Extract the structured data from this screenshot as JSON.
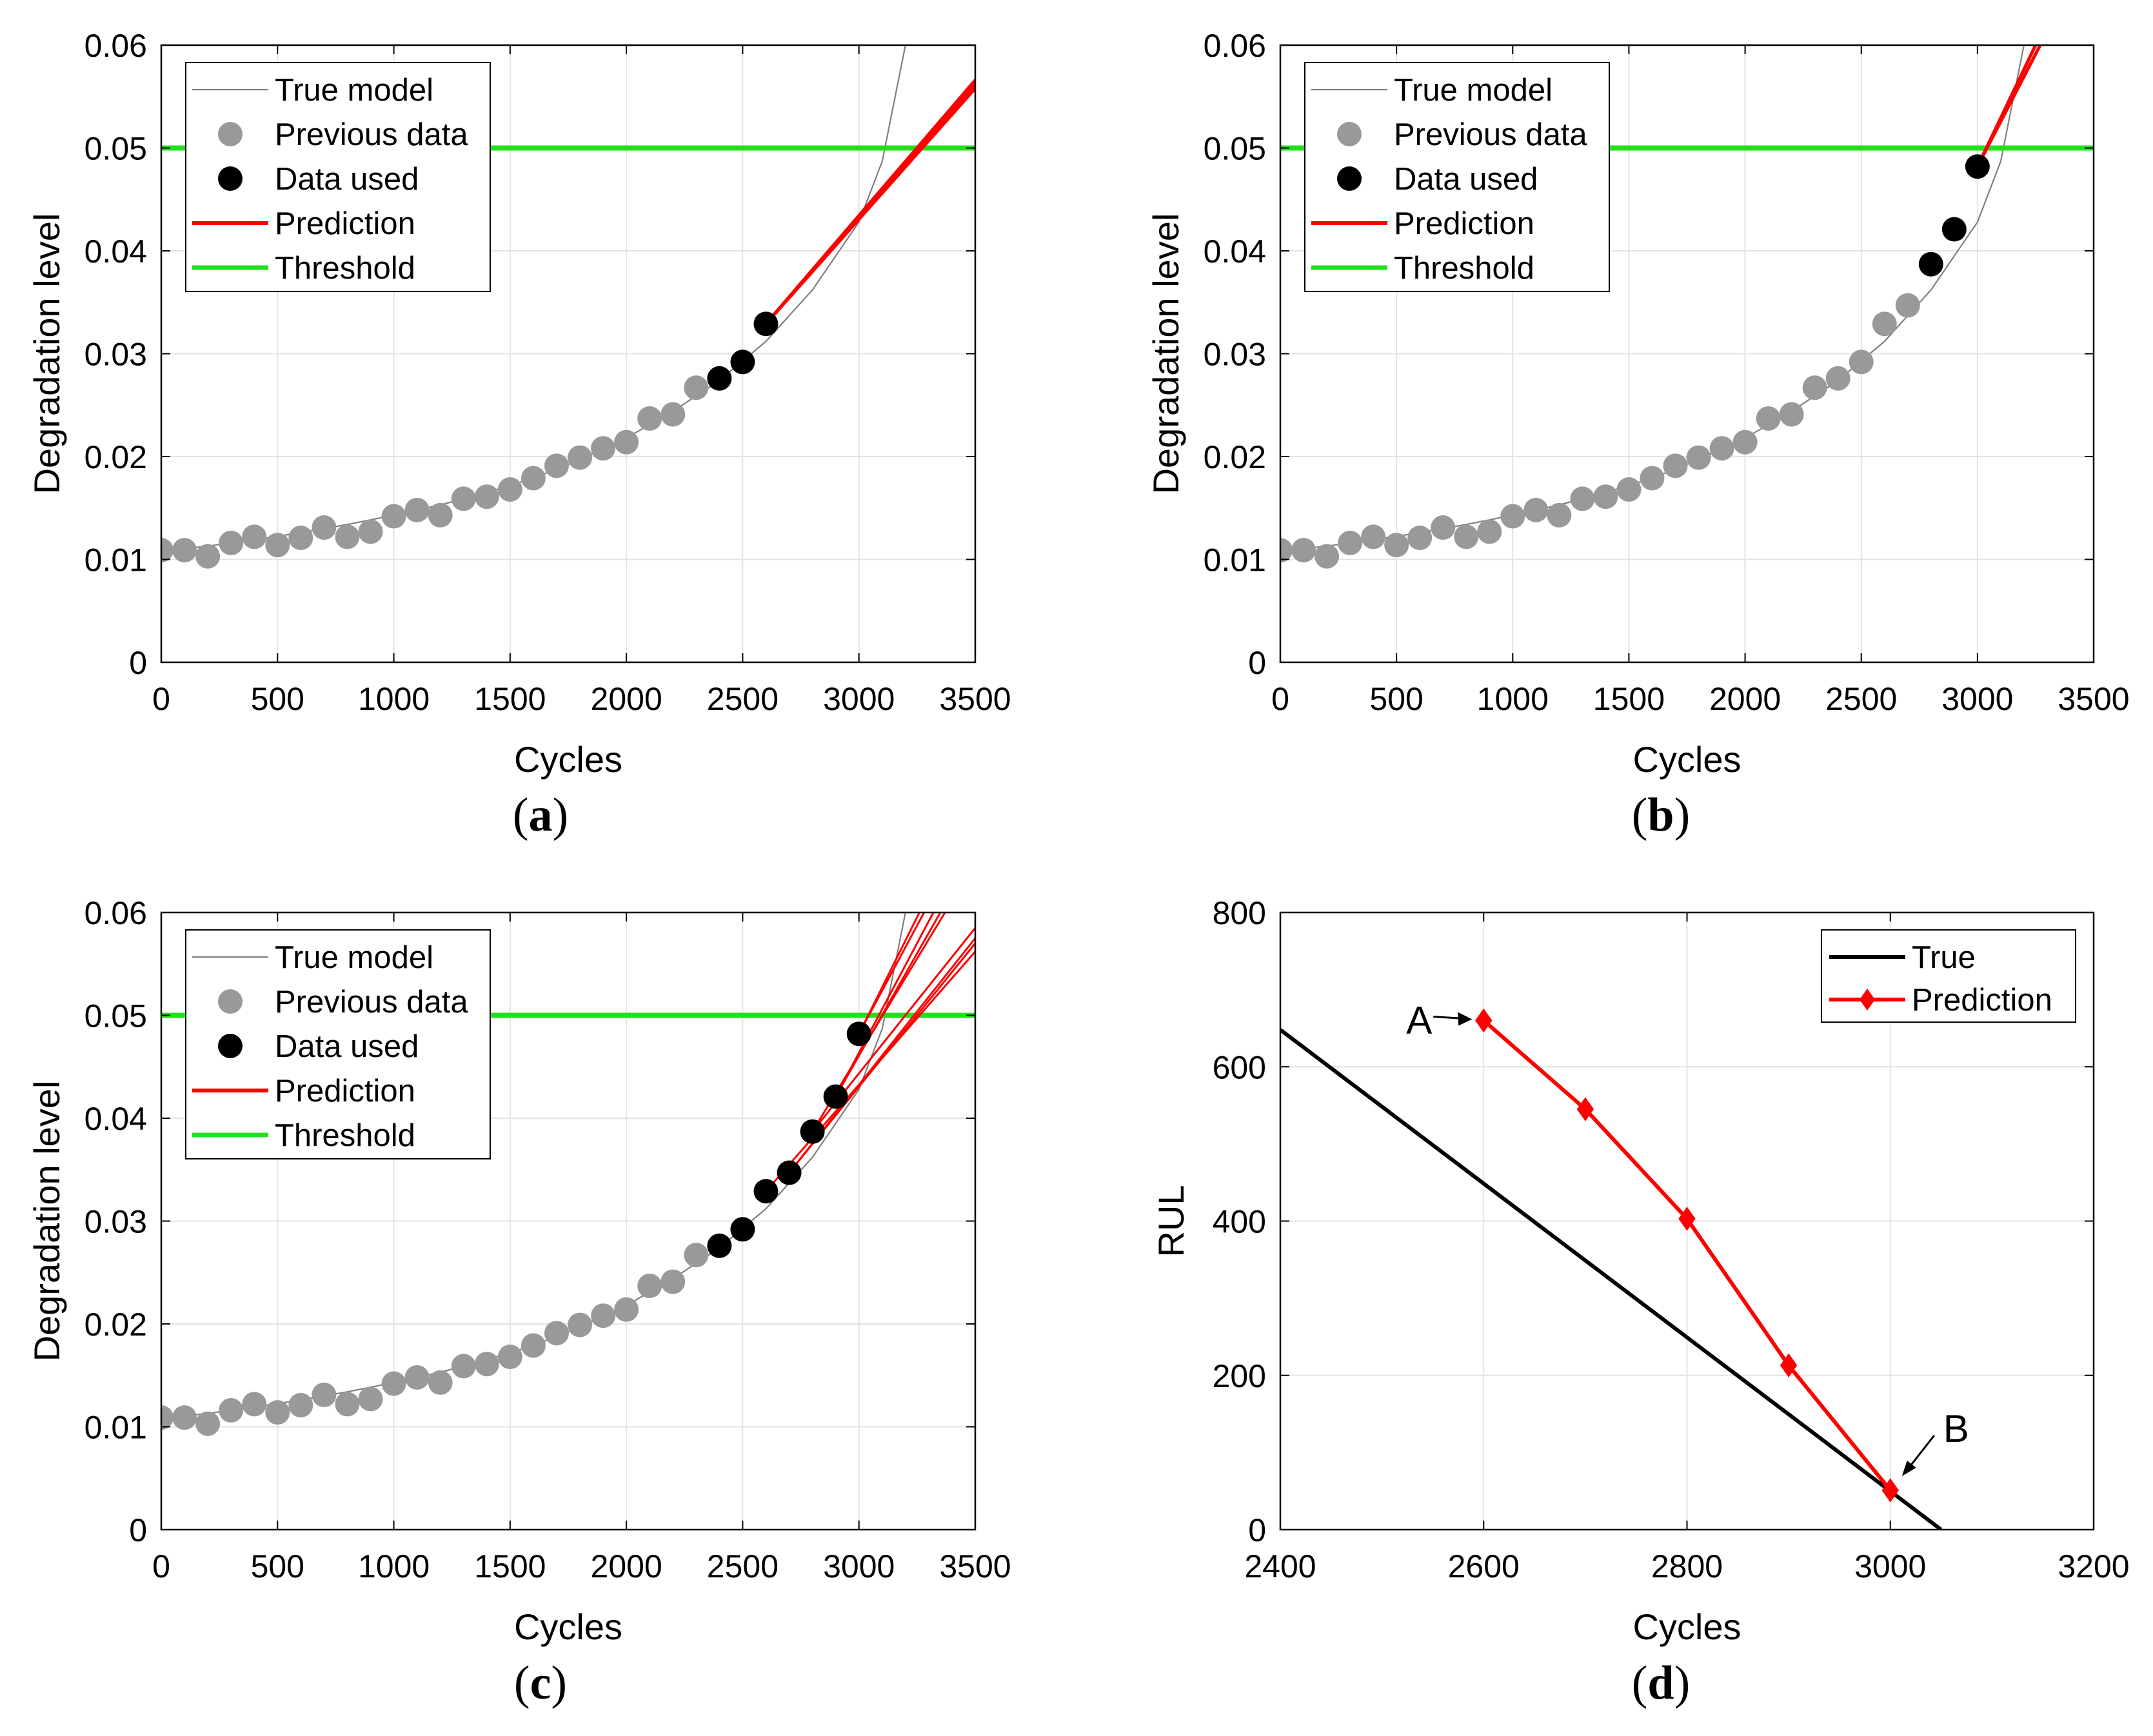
{
  "figure": {
    "captions": [
      {
        "open": "(",
        "letter": "a",
        "close": ")"
      },
      {
        "open": "(",
        "letter": "b",
        "close": ")"
      },
      {
        "open": "(",
        "letter": "c",
        "close": ")"
      },
      {
        "open": "(",
        "letter": "d",
        "close": ")"
      }
    ]
  },
  "colors": {
    "true_model": "#7f7f7f",
    "previous_data": "#999999",
    "data_used": "#000000",
    "prediction": "#ff0000",
    "threshold": "#22e01e",
    "true_rul": "#000000",
    "grid": "#e3e3e3"
  },
  "chart_data": [
    {
      "id": "a",
      "type": "scatter",
      "xlabel": "Cycles",
      "ylabel": "Degradation level",
      "xlim": [
        0,
        3500
      ],
      "ylim": [
        0,
        0.06
      ],
      "xticks": [
        0,
        500,
        1000,
        1500,
        2000,
        2500,
        3000,
        3500
      ],
      "xtick_labels": [
        "0",
        "500",
        "1000",
        "1500",
        "2000",
        "2500",
        "3000",
        "3500"
      ],
      "yticks": [
        0,
        0.01,
        0.02,
        0.03,
        0.04,
        0.05,
        0.06
      ],
      "ytick_labels": [
        "0",
        "0.01",
        "0.02",
        "0.03",
        "0.04",
        "0.05",
        "0.06"
      ],
      "grid": true,
      "legend": [
        "True model",
        "Previous data",
        "Data used",
        "Prediction",
        "Threshold"
      ],
      "legend_position": "top-left",
      "threshold": 0.05,
      "true_model_x": [
        0,
        200,
        400,
        600,
        800,
        1000,
        1200,
        1400,
        1600,
        1800,
        2000,
        2200,
        2400,
        2600,
        2800,
        3000,
        3100,
        3200
      ],
      "true_model_y": [
        0.0108,
        0.0113,
        0.0119,
        0.0126,
        0.0134,
        0.0143,
        0.0153,
        0.0165,
        0.0179,
        0.0197,
        0.0218,
        0.0244,
        0.0274,
        0.0312,
        0.0362,
        0.0428,
        0.0487,
        0.06
      ],
      "previous_x": [
        0,
        100,
        200,
        300,
        400,
        500,
        600,
        700,
        800,
        900,
        1000,
        1100,
        1200,
        1300,
        1400,
        1500,
        1600,
        1700,
        1800,
        1900,
        2000,
        2100,
        2200,
        2300
      ],
      "previous_y": [
        0.0109,
        0.0109,
        0.0103,
        0.0116,
        0.0122,
        0.0114,
        0.0121,
        0.0131,
        0.0122,
        0.0127,
        0.0142,
        0.0148,
        0.0143,
        0.0159,
        0.0161,
        0.0168,
        0.0179,
        0.0191,
        0.0199,
        0.0208,
        0.0214,
        0.0237,
        0.0241,
        0.0267
      ],
      "used_x": [
        2400,
        2500,
        2600
      ],
      "used_y": [
        0.0276,
        0.0292,
        0.0329
      ],
      "predictions": [
        {
          "x": [
            2600,
            3500
          ],
          "y": [
            0.0329,
            0.0562
          ]
        },
        {
          "x": [
            2600,
            3500
          ],
          "y": [
            0.0329,
            0.0566
          ]
        },
        {
          "x": [
            2600,
            3500
          ],
          "y": [
            0.0329,
            0.0558
          ]
        }
      ]
    },
    {
      "id": "b",
      "type": "scatter",
      "xlabel": "Cycles",
      "ylabel": "Degradation level",
      "xlim": [
        0,
        3500
      ],
      "ylim": [
        0,
        0.06
      ],
      "xticks": [
        0,
        500,
        1000,
        1500,
        2000,
        2500,
        3000,
        3500
      ],
      "xtick_labels": [
        "0",
        "500",
        "1000",
        "1500",
        "2000",
        "2500",
        "3000",
        "3500"
      ],
      "yticks": [
        0,
        0.01,
        0.02,
        0.03,
        0.04,
        0.05,
        0.06
      ],
      "ytick_labels": [
        "0",
        "0.01",
        "0.02",
        "0.03",
        "0.04",
        "0.05",
        "0.06"
      ],
      "grid": true,
      "legend": [
        "True model",
        "Previous data",
        "Data used",
        "Prediction",
        "Threshold"
      ],
      "legend_position": "top-left",
      "threshold": 0.05,
      "true_model_x": [
        0,
        200,
        400,
        600,
        800,
        1000,
        1200,
        1400,
        1600,
        1800,
        2000,
        2200,
        2400,
        2600,
        2800,
        3000,
        3100,
        3200
      ],
      "true_model_y": [
        0.0108,
        0.0113,
        0.0119,
        0.0126,
        0.0134,
        0.0143,
        0.0153,
        0.0165,
        0.0179,
        0.0197,
        0.0218,
        0.0244,
        0.0274,
        0.0312,
        0.0362,
        0.0428,
        0.0487,
        0.06
      ],
      "previous_x": [
        0,
        100,
        200,
        300,
        400,
        500,
        600,
        700,
        800,
        900,
        1000,
        1100,
        1200,
        1300,
        1400,
        1500,
        1600,
        1700,
        1800,
        1900,
        2000,
        2100,
        2200,
        2300,
        2400,
        2500,
        2600,
        2700
      ],
      "previous_y": [
        0.0109,
        0.0109,
        0.0103,
        0.0116,
        0.0122,
        0.0114,
        0.0121,
        0.0131,
        0.0122,
        0.0127,
        0.0142,
        0.0148,
        0.0143,
        0.0159,
        0.0161,
        0.0168,
        0.0179,
        0.0191,
        0.0199,
        0.0208,
        0.0214,
        0.0237,
        0.0241,
        0.0267,
        0.0276,
        0.0292,
        0.0329,
        0.0347
      ],
      "used_x": [
        2800,
        2900,
        3000
      ],
      "used_y": [
        0.0387,
        0.0421,
        0.0482
      ],
      "predictions": [
        {
          "x": [
            3000,
            3270
          ],
          "y": [
            0.0482,
            0.06
          ]
        },
        {
          "x": [
            3000,
            3250
          ],
          "y": [
            0.0482,
            0.06
          ]
        }
      ]
    },
    {
      "id": "c",
      "type": "scatter",
      "xlabel": "Cycles",
      "ylabel": "Degradation level",
      "xlim": [
        0,
        3500
      ],
      "ylim": [
        0,
        0.06
      ],
      "xticks": [
        0,
        500,
        1000,
        1500,
        2000,
        2500,
        3000,
        3500
      ],
      "xtick_labels": [
        "0",
        "500",
        "1000",
        "1500",
        "2000",
        "2500",
        "3000",
        "3500"
      ],
      "yticks": [
        0,
        0.01,
        0.02,
        0.03,
        0.04,
        0.05,
        0.06
      ],
      "ytick_labels": [
        "0",
        "0.01",
        "0.02",
        "0.03",
        "0.04",
        "0.05",
        "0.06"
      ],
      "grid": true,
      "legend": [
        "True model",
        "Previous data",
        "Data used",
        "Prediction",
        "Threshold"
      ],
      "legend_position": "top-left",
      "threshold": 0.05,
      "true_model_x": [
        0,
        200,
        400,
        600,
        800,
        1000,
        1200,
        1400,
        1600,
        1800,
        2000,
        2200,
        2400,
        2600,
        2800,
        3000,
        3100,
        3200
      ],
      "true_model_y": [
        0.0108,
        0.0113,
        0.0119,
        0.0126,
        0.0134,
        0.0143,
        0.0153,
        0.0165,
        0.0179,
        0.0197,
        0.0218,
        0.0244,
        0.0274,
        0.0312,
        0.0362,
        0.0428,
        0.0487,
        0.06
      ],
      "previous_x": [
        0,
        100,
        200,
        300,
        400,
        500,
        600,
        700,
        800,
        900,
        1000,
        1100,
        1200,
        1300,
        1400,
        1500,
        1600,
        1700,
        1800,
        1900,
        2000,
        2100,
        2200,
        2300
      ],
      "previous_y": [
        0.0109,
        0.0109,
        0.0103,
        0.0116,
        0.0122,
        0.0114,
        0.0121,
        0.0131,
        0.0122,
        0.0127,
        0.0142,
        0.0148,
        0.0143,
        0.0159,
        0.0161,
        0.0168,
        0.0179,
        0.0191,
        0.0199,
        0.0208,
        0.0214,
        0.0237,
        0.0241,
        0.0267
      ],
      "used_x": [
        2400,
        2500,
        2600,
        2700,
        2800,
        2900,
        3000
      ],
      "used_y": [
        0.0276,
        0.0292,
        0.0329,
        0.0347,
        0.0387,
        0.0421,
        0.0482
      ],
      "predictions": [
        {
          "x": [
            2600,
            3500
          ],
          "y": [
            0.0329,
            0.0562
          ]
        },
        {
          "x": [
            2700,
            3500
          ],
          "y": [
            0.0347,
            0.0575
          ]
        },
        {
          "x": [
            2700,
            3500
          ],
          "y": [
            0.0347,
            0.057
          ]
        },
        {
          "x": [
            2800,
            3500
          ],
          "y": [
            0.0387,
            0.0585
          ]
        },
        {
          "x": [
            2800,
            3370
          ],
          "y": [
            0.0387,
            0.06
          ]
        },
        {
          "x": [
            2900,
            3350
          ],
          "y": [
            0.0421,
            0.06
          ]
        },
        {
          "x": [
            2900,
            3320
          ],
          "y": [
            0.0421,
            0.06
          ]
        },
        {
          "x": [
            3000,
            3280
          ],
          "y": [
            0.0482,
            0.06
          ]
        },
        {
          "x": [
            3000,
            3260
          ],
          "y": [
            0.0482,
            0.06
          ]
        }
      ]
    },
    {
      "id": "d",
      "type": "line",
      "xlabel": "Cycles",
      "ylabel": "RUL",
      "xlim": [
        2400,
        3200
      ],
      "ylim": [
        0,
        800
      ],
      "xticks": [
        2400,
        2600,
        2800,
        3000,
        3200
      ],
      "xtick_labels": [
        "2400",
        "2600",
        "2800",
        "3000",
        "3200"
      ],
      "yticks": [
        0,
        200,
        400,
        600,
        800
      ],
      "ytick_labels": [
        "0",
        "200",
        "400",
        "600",
        "800"
      ],
      "grid": true,
      "legend": [
        "True",
        "Prediction"
      ],
      "legend_position": "top-right",
      "series": [
        {
          "name": "True",
          "x": [
            2400,
            3050
          ],
          "values": [
            648,
            0
          ]
        },
        {
          "name": "Prediction",
          "x": [
            2600,
            2700,
            2800,
            2900,
            3000
          ],
          "values": [
            660,
            545,
            403,
            213,
            51
          ]
        }
      ],
      "annotations": [
        {
          "text": "A",
          "x": 2600,
          "y": 660
        },
        {
          "text": "B",
          "x": 3000,
          "y": 51
        }
      ]
    }
  ]
}
